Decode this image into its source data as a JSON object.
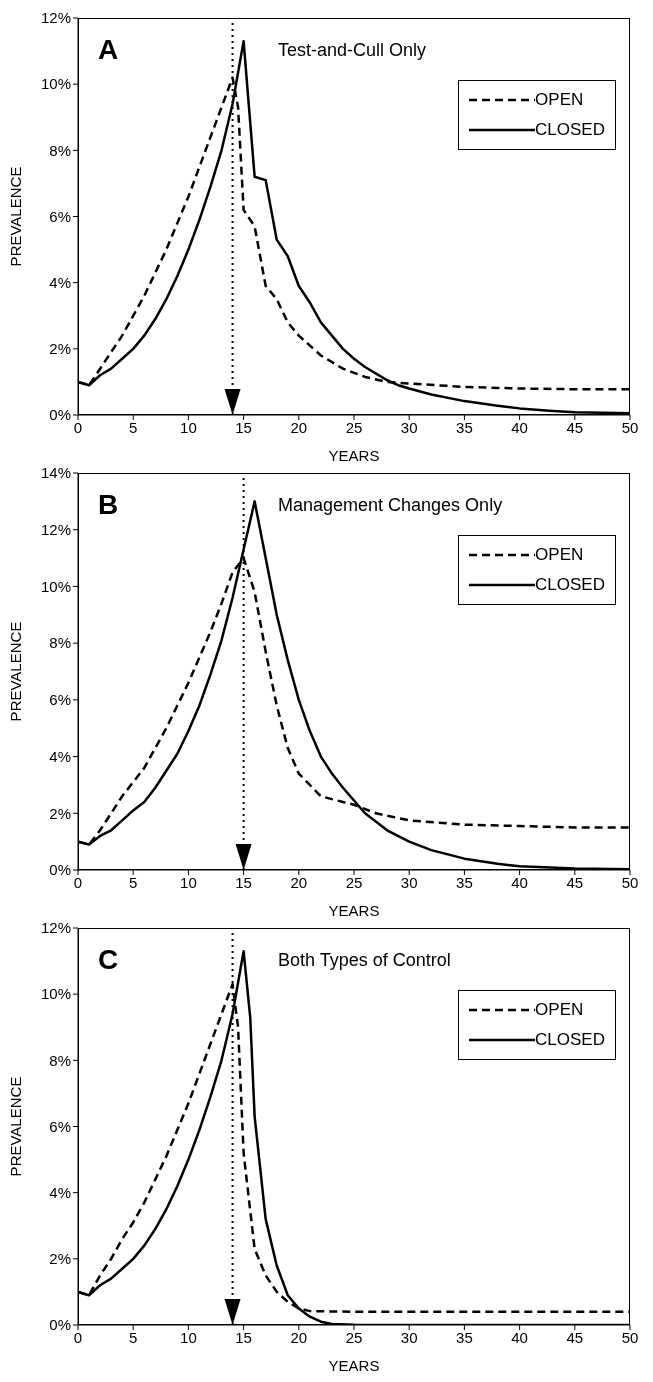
{
  "chart_data": [
    {
      "type": "line",
      "title": "Test-and-Cull Only",
      "annotations": [
        "A"
      ],
      "xlabel": "YEARS",
      "ylabel": "PREVALENCE",
      "xlim": [
        0,
        50
      ],
      "xticks": [
        0,
        5,
        10,
        15,
        20,
        25,
        30,
        35,
        40,
        45,
        50
      ],
      "ylim": [
        0,
        12
      ],
      "yticks": [
        {
          "value": 0,
          "label": "0%"
        },
        {
          "value": 2,
          "label": "2%"
        },
        {
          "value": 4,
          "label": "4%"
        },
        {
          "value": 6,
          "label": "6%"
        },
        {
          "value": 8,
          "label": "8%"
        },
        {
          "value": 10,
          "label": "10%"
        },
        {
          "value": 12,
          "label": "12%"
        }
      ],
      "legend": "top right",
      "marker": "none",
      "ref_lines": [
        {
          "axis": "x",
          "value": 14,
          "line_style": "dotted",
          "color": "#000000"
        }
      ],
      "series": [
        {
          "name": "OPEN",
          "color": "#000000",
          "line_style": "dashed",
          "x": [
            0,
            1,
            2,
            3,
            4,
            5,
            6,
            7,
            8,
            9,
            10,
            11,
            12,
            13,
            14,
            14.5,
            15,
            16,
            17,
            18,
            19,
            20,
            22,
            24,
            26,
            28,
            30,
            35,
            40,
            45,
            50
          ],
          "values": [
            1.0,
            0.9,
            1.4,
            1.9,
            2.4,
            3.0,
            3.6,
            4.3,
            5.0,
            5.8,
            6.6,
            7.5,
            8.4,
            9.3,
            10.2,
            9.3,
            6.2,
            5.7,
            3.9,
            3.5,
            2.8,
            2.4,
            1.8,
            1.4,
            1.15,
            1.0,
            0.95,
            0.85,
            0.8,
            0.78,
            0.78
          ]
        },
        {
          "name": "CLOSED",
          "color": "#000000",
          "line_style": "solid",
          "x": [
            0,
            1,
            2,
            3,
            4,
            5,
            6,
            7,
            8,
            9,
            10,
            11,
            12,
            13,
            14,
            15,
            16,
            17,
            18,
            19,
            20,
            21,
            22,
            23,
            24,
            25,
            26,
            27,
            28,
            29,
            30,
            32,
            35,
            38,
            40,
            43,
            45,
            50
          ],
          "values": [
            1.0,
            0.9,
            1.2,
            1.4,
            1.7,
            2.0,
            2.4,
            2.9,
            3.5,
            4.2,
            5.0,
            5.9,
            6.9,
            8.0,
            9.4,
            11.3,
            7.2,
            7.1,
            5.3,
            4.8,
            3.9,
            3.4,
            2.8,
            2.4,
            2.0,
            1.7,
            1.45,
            1.25,
            1.05,
            0.9,
            0.8,
            0.62,
            0.42,
            0.28,
            0.2,
            0.12,
            0.08,
            0.05
          ]
        }
      ]
    },
    {
      "type": "line",
      "title": "Management Changes Only",
      "annotations": [
        "B"
      ],
      "xlabel": "YEARS",
      "ylabel": "PREVALENCE",
      "xlim": [
        0,
        50
      ],
      "xticks": [
        0,
        5,
        10,
        15,
        20,
        25,
        30,
        35,
        40,
        45,
        50
      ],
      "ylim": [
        0,
        14
      ],
      "yticks": [
        {
          "value": 0,
          "label": "0%"
        },
        {
          "value": 2,
          "label": "2%"
        },
        {
          "value": 4,
          "label": "4%"
        },
        {
          "value": 6,
          "label": "6%"
        },
        {
          "value": 8,
          "label": "8%"
        },
        {
          "value": 10,
          "label": "10%"
        },
        {
          "value": 12,
          "label": "12%"
        },
        {
          "value": 14,
          "label": "14%"
        }
      ],
      "legend": "top right",
      "marker": "none",
      "ref_lines": [
        {
          "axis": "x",
          "value": 15,
          "line_style": "dotted",
          "color": "#000000"
        }
      ],
      "series": [
        {
          "name": "OPEN",
          "color": "#000000",
          "line_style": "dashed",
          "x": [
            0,
            1,
            2,
            3,
            4,
            5,
            6,
            7,
            8,
            9,
            10,
            11,
            12,
            13,
            14,
            15,
            16,
            17,
            18,
            19,
            20,
            21,
            22,
            23,
            24,
            25,
            27,
            30,
            35,
            40,
            45,
            50
          ],
          "values": [
            1.0,
            0.9,
            1.4,
            2.0,
            2.6,
            3.1,
            3.6,
            4.3,
            5.0,
            5.8,
            6.6,
            7.5,
            8.4,
            9.4,
            10.5,
            11.0,
            9.8,
            7.7,
            5.8,
            4.3,
            3.4,
            3.0,
            2.6,
            2.5,
            2.4,
            2.3,
            2.0,
            1.75,
            1.6,
            1.55,
            1.5,
            1.5
          ]
        },
        {
          "name": "CLOSED",
          "color": "#000000",
          "line_style": "solid",
          "x": [
            0,
            1,
            2,
            3,
            4,
            5,
            6,
            7,
            8,
            9,
            10,
            11,
            12,
            13,
            14,
            15,
            16,
            17,
            18,
            19,
            20,
            21,
            22,
            23,
            24,
            25,
            26,
            27,
            28,
            30,
            32,
            35,
            38,
            40,
            45,
            50
          ],
          "values": [
            1.0,
            0.9,
            1.2,
            1.4,
            1.75,
            2.1,
            2.4,
            2.9,
            3.5,
            4.1,
            4.9,
            5.8,
            6.9,
            8.1,
            9.6,
            11.3,
            13.0,
            11.0,
            9.0,
            7.4,
            6.0,
            4.9,
            4.0,
            3.4,
            2.9,
            2.45,
            2.0,
            1.7,
            1.4,
            1.0,
            0.7,
            0.4,
            0.22,
            0.13,
            0.05,
            0.03
          ]
        }
      ]
    },
    {
      "type": "line",
      "title": "Both Types of Control",
      "annotations": [
        "C"
      ],
      "xlabel": "YEARS",
      "ylabel": "PREVALENCE",
      "xlim": [
        0,
        50
      ],
      "xticks": [
        0,
        5,
        10,
        15,
        20,
        25,
        30,
        35,
        40,
        45,
        50
      ],
      "ylim": [
        0,
        12
      ],
      "yticks": [
        {
          "value": 0,
          "label": "0%"
        },
        {
          "value": 2,
          "label": "2%"
        },
        {
          "value": 4,
          "label": "4%"
        },
        {
          "value": 6,
          "label": "6%"
        },
        {
          "value": 8,
          "label": "8%"
        },
        {
          "value": 10,
          "label": "10%"
        },
        {
          "value": 12,
          "label": "12%"
        }
      ],
      "legend": "top right",
      "marker": "none",
      "ref_lines": [
        {
          "axis": "x",
          "value": 14,
          "line_style": "dotted",
          "color": "#000000"
        }
      ],
      "series": [
        {
          "name": "OPEN",
          "color": "#000000",
          "line_style": "dashed",
          "x": [
            0,
            1,
            2,
            3,
            4,
            5,
            6,
            7,
            8,
            9,
            10,
            11,
            12,
            13,
            14,
            14.5,
            15,
            16,
            17,
            18,
            19,
            20,
            21,
            25,
            30,
            40,
            50
          ],
          "values": [
            1.0,
            0.9,
            1.5,
            2.0,
            2.6,
            3.1,
            3.7,
            4.4,
            5.1,
            5.9,
            6.7,
            7.6,
            8.5,
            9.4,
            10.3,
            9.0,
            5.2,
            2.3,
            1.5,
            1.0,
            0.7,
            0.5,
            0.42,
            0.4,
            0.4,
            0.4,
            0.4
          ]
        },
        {
          "name": "CLOSED",
          "color": "#000000",
          "line_style": "solid",
          "x": [
            0,
            1,
            2,
            3,
            4,
            5,
            6,
            7,
            8,
            9,
            10,
            11,
            12,
            13,
            14,
            15,
            15.6,
            16,
            17,
            18,
            19,
            20,
            21,
            22,
            23,
            25,
            30,
            50
          ],
          "values": [
            1.0,
            0.9,
            1.2,
            1.4,
            1.7,
            2.0,
            2.4,
            2.9,
            3.5,
            4.2,
            5.0,
            5.9,
            6.9,
            8.0,
            9.4,
            11.3,
            9.3,
            6.3,
            3.2,
            1.8,
            0.9,
            0.5,
            0.25,
            0.1,
            0.03,
            0.01,
            0,
            0
          ]
        }
      ]
    }
  ]
}
